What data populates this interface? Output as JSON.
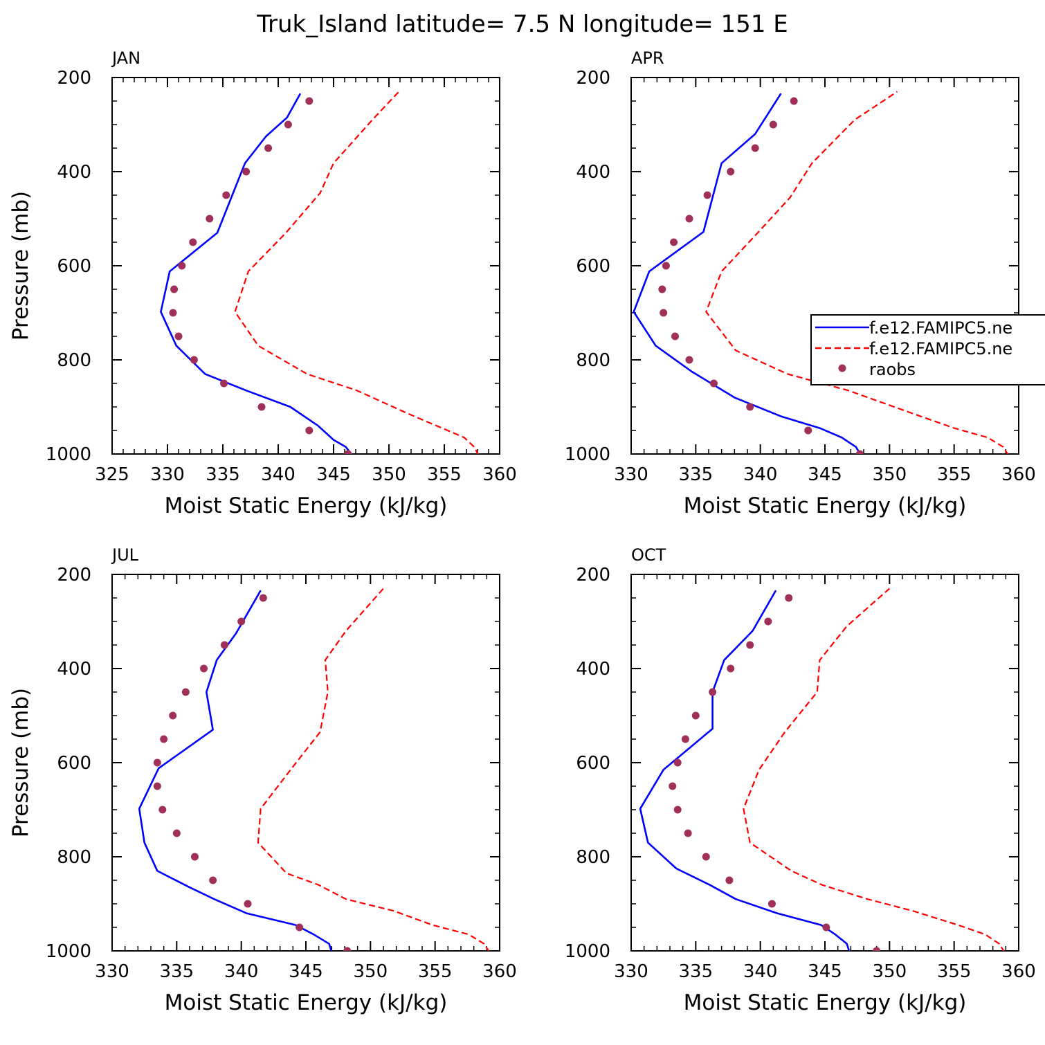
{
  "title": "Truk_Island  latitude= 7.5 N longitude= 151 E",
  "colors": {
    "model1": "#0000ff",
    "model2": "#ff0000",
    "raobs": "#a0305a"
  },
  "legend": {
    "position": "right",
    "entries": [
      {
        "label": "f.e12.FAMIPC5.ne",
        "style": "solid",
        "color": "#0000ff"
      },
      {
        "label": "f.e12.FAMIPC5.ne",
        "style": "dashed",
        "color": "#ff0000"
      },
      {
        "label": "raobs",
        "style": "dot",
        "color": "#a0305a"
      }
    ]
  },
  "chart_data": [
    {
      "type": "line",
      "label": "JAN",
      "xlabel": "Moist Static Energy (kJ/kg)",
      "ylabel": "Pressure (mb)",
      "xlim": [
        325,
        360
      ],
      "ylim": [
        1000,
        200
      ],
      "grid": false,
      "xticks": [
        325,
        330,
        335,
        340,
        345,
        350,
        355,
        360
      ],
      "yticks": [
        200,
        400,
        600,
        800,
        1000
      ],
      "series": [
        {
          "style": "solid",
          "color": "#0000ff",
          "x": [
            346.7,
            346.1,
            345.0,
            343.6,
            341.1,
            337.1,
            333.4,
            330.8,
            329.4,
            330.2,
            334.5,
            337.0,
            338.9,
            340.8,
            342.0
          ],
          "y": [
            1003,
            985,
            970,
            940,
            900,
            865,
            830,
            770,
            698,
            612,
            530,
            382,
            325,
            285,
            234
          ]
        },
        {
          "style": "dashed",
          "color": "#ff0000",
          "x": [
            358.1,
            357.7,
            356.8,
            354.8,
            351.8,
            347.1,
            342.6,
            338.2,
            336.1,
            337.3,
            340.7,
            343.8,
            345.0,
            348.5,
            350.9
          ],
          "y": [
            1003,
            985,
            965,
            945,
            915,
            865,
            830,
            770,
            698,
            612,
            530,
            445,
            382,
            290,
            230
          ]
        },
        {
          "style": "dots",
          "color": "#a0305a",
          "x": [
            346.3,
            342.8,
            338.5,
            335.1,
            332.4,
            331.0,
            330.5,
            330.6,
            331.3,
            332.3,
            333.8,
            335.3,
            337.1,
            339.1,
            340.9,
            342.8
          ],
          "y": [
            1000,
            950,
            900,
            850,
            800,
            750,
            700,
            650,
            600,
            550,
            500,
            450,
            400,
            350,
            300,
            250
          ]
        }
      ]
    },
    {
      "type": "line",
      "label": "APR",
      "xlabel": "Moist Static Energy (kJ/kg)",
      "ylabel": "",
      "xlim": [
        330,
        360
      ],
      "ylim": [
        1000,
        200
      ],
      "grid": false,
      "xticks": [
        330,
        335,
        340,
        345,
        350,
        355,
        360
      ],
      "yticks": [
        200,
        400,
        600,
        800,
        1000
      ],
      "series": [
        {
          "style": "solid",
          "color": "#0000ff",
          "x": [
            347.8,
            347.4,
            346.3,
            344.6,
            341.6,
            338.0,
            334.7,
            331.9,
            330.2,
            331.4,
            335.6,
            337.0,
            339.6,
            341.6
          ],
          "y": [
            1003,
            985,
            965,
            945,
            920,
            880,
            825,
            770,
            698,
            612,
            528,
            382,
            320,
            234
          ]
        },
        {
          "style": "dashed",
          "color": "#ff0000",
          "x": [
            359.2,
            358.8,
            357.6,
            355.0,
            351.9,
            346.8,
            342.1,
            338.1,
            335.8,
            337.0,
            339.8,
            342.3,
            344.0,
            347.3,
            350.6
          ],
          "y": [
            1003,
            985,
            965,
            945,
            915,
            865,
            830,
            780,
            698,
            612,
            530,
            455,
            382,
            290,
            230
          ]
        },
        {
          "style": "dots",
          "color": "#a0305a",
          "x": [
            347.7,
            343.7,
            339.2,
            336.4,
            334.5,
            333.4,
            332.5,
            332.4,
            332.7,
            333.3,
            334.5,
            335.9,
            337.7,
            339.6,
            341.0,
            342.6
          ],
          "y": [
            1000,
            950,
            900,
            850,
            800,
            750,
            700,
            650,
            600,
            550,
            500,
            450,
            400,
            350,
            300,
            250
          ]
        }
      ]
    },
    {
      "type": "line",
      "label": "JUL",
      "xlabel": "Moist Static Energy (kJ/kg)",
      "ylabel": "Pressure (mb)",
      "xlim": [
        330,
        360
      ],
      "ylim": [
        1000,
        200
      ],
      "grid": false,
      "xticks": [
        330,
        335,
        340,
        345,
        350,
        355,
        360
      ],
      "yticks": [
        200,
        400,
        600,
        800,
        1000
      ],
      "series": [
        {
          "style": "solid",
          "color": "#0000ff",
          "x": [
            347.0,
            346.8,
            345.6,
            344.2,
            340.4,
            337.9,
            336.0,
            333.5,
            332.5,
            332.1,
            333.6,
            337.8,
            337.3,
            338.1,
            339.6,
            341.5
          ],
          "y": [
            1003,
            985,
            965,
            945,
            920,
            890,
            865,
            830,
            770,
            698,
            612,
            530,
            450,
            382,
            325,
            234
          ]
        },
        {
          "style": "dashed",
          "color": "#ff0000",
          "x": [
            359.2,
            358.8,
            357.6,
            354.8,
            351.8,
            348.1,
            346.0,
            343.5,
            341.3,
            341.5,
            343.9,
            346.1,
            346.7,
            346.5,
            348.1,
            351.0
          ],
          "y": [
            1003,
            985,
            965,
            945,
            915,
            890,
            860,
            835,
            770,
            698,
            612,
            535,
            450,
            382,
            320,
            230
          ]
        },
        {
          "style": "dots",
          "color": "#a0305a",
          "x": [
            348.2,
            344.5,
            340.5,
            337.8,
            336.4,
            335.0,
            333.9,
            333.5,
            333.5,
            334.0,
            334.7,
            335.7,
            337.1,
            338.7,
            340.0,
            341.7
          ],
          "y": [
            1000,
            950,
            900,
            850,
            800,
            750,
            700,
            650,
            600,
            550,
            500,
            450,
            400,
            350,
            300,
            250
          ]
        }
      ]
    },
    {
      "type": "line",
      "label": "OCT",
      "xlabel": "Moist Static Energy (kJ/kg)",
      "ylabel": "",
      "xlim": [
        330,
        360
      ],
      "ylim": [
        1000,
        200
      ],
      "grid": false,
      "xticks": [
        330,
        335,
        340,
        345,
        350,
        355,
        360
      ],
      "yticks": [
        200,
        400,
        600,
        800,
        1000
      ],
      "series": [
        {
          "style": "solid",
          "color": "#0000ff",
          "x": [
            346.9,
            346.7,
            345.8,
            344.7,
            341.3,
            338.1,
            336.1,
            333.5,
            331.3,
            330.7,
            332.5,
            336.3,
            336.3,
            337.2,
            339.4,
            341.2
          ],
          "y": [
            1003,
            985,
            965,
            945,
            920,
            890,
            860,
            825,
            770,
            698,
            615,
            528,
            450,
            382,
            320,
            234
          ]
        },
        {
          "style": "dashed",
          "color": "#ff0000",
          "x": [
            358.9,
            358.5,
            357.4,
            355.3,
            351.8,
            348.3,
            344.8,
            342.4,
            339.2,
            338.7,
            339.9,
            341.9,
            344.4,
            344.6,
            346.7,
            350.0
          ],
          "y": [
            1003,
            985,
            965,
            945,
            915,
            890,
            860,
            830,
            770,
            698,
            615,
            535,
            450,
            382,
            310,
            230
          ]
        },
        {
          "style": "dots",
          "color": "#a0305a",
          "x": [
            349.0,
            345.1,
            340.9,
            337.6,
            335.8,
            334.4,
            333.6,
            333.2,
            333.6,
            334.2,
            335.0,
            336.3,
            337.7,
            339.2,
            340.6,
            342.2
          ],
          "y": [
            1000,
            950,
            900,
            850,
            800,
            750,
            700,
            650,
            600,
            550,
            500,
            450,
            400,
            350,
            300,
            250
          ]
        }
      ]
    }
  ]
}
